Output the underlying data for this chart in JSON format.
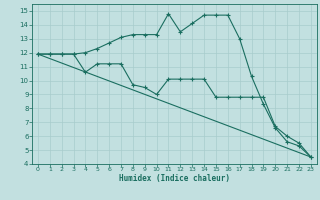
{
  "xlabel": "Humidex (Indice chaleur)",
  "bg_color": "#c2e0e0",
  "grid_color": "#a8cccc",
  "line_color": "#1a6e60",
  "xlim": [
    -0.5,
    23.5
  ],
  "ylim": [
    4,
    15.5
  ],
  "xticks": [
    0,
    1,
    2,
    3,
    4,
    5,
    6,
    7,
    8,
    9,
    10,
    11,
    12,
    13,
    14,
    15,
    16,
    17,
    18,
    19,
    20,
    21,
    22,
    23
  ],
  "yticks": [
    4,
    5,
    6,
    7,
    8,
    9,
    10,
    11,
    12,
    13,
    14,
    15
  ],
  "line1_x": [
    0,
    1,
    2,
    3,
    4,
    5,
    6,
    7,
    8,
    9,
    10,
    11,
    12,
    13,
    14,
    15,
    16,
    17,
    18,
    19,
    20,
    21,
    22,
    23
  ],
  "line1_y": [
    11.9,
    11.9,
    11.9,
    11.9,
    12.0,
    12.3,
    12.7,
    13.1,
    13.3,
    13.3,
    13.3,
    14.8,
    13.5,
    14.1,
    14.7,
    14.7,
    14.7,
    13.0,
    10.3,
    8.3,
    6.6,
    5.6,
    5.3,
    4.5
  ],
  "line2_x": [
    0,
    1,
    2,
    3,
    4,
    5,
    6,
    7,
    8,
    9,
    10,
    11,
    12,
    13,
    14,
    15,
    16,
    17,
    18,
    19,
    20,
    21,
    22,
    23
  ],
  "line2_y": [
    11.9,
    11.9,
    11.9,
    11.9,
    10.6,
    11.2,
    11.2,
    11.2,
    9.7,
    9.5,
    9.0,
    10.1,
    10.1,
    10.1,
    10.1,
    8.8,
    8.8,
    8.8,
    8.8,
    8.8,
    6.7,
    6.0,
    5.5,
    4.5
  ],
  "line3_x": [
    0,
    23
  ],
  "line3_y": [
    11.9,
    4.5
  ],
  "marker": "+",
  "markersize": 3.5,
  "linewidth": 0.8
}
